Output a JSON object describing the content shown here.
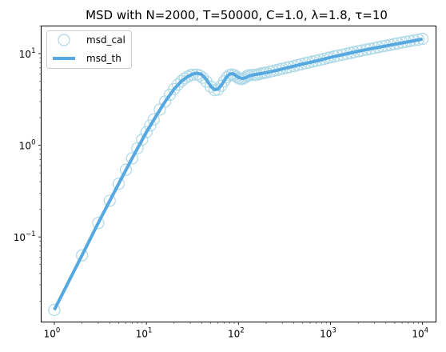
{
  "chart_data": {
    "type": "line",
    "title": "MSD with N=2000, T=50000, C=1.0, λ=1.8, τ=10",
    "xlabel": "",
    "ylabel": "",
    "xscale": "log",
    "yscale": "log",
    "xlim": [
      0.72,
      14000
    ],
    "ylim": [
      0.0118,
      20
    ],
    "grid": false,
    "legend": {
      "placement": "upper-left"
    },
    "x_ticks": [
      {
        "value": 1,
        "base": "10",
        "exp": "0"
      },
      {
        "value": 10,
        "base": "10",
        "exp": "1"
      },
      {
        "value": 100,
        "base": "10",
        "exp": "2"
      },
      {
        "value": 1000,
        "base": "10",
        "exp": "3"
      },
      {
        "value": 10000,
        "base": "10",
        "exp": "4"
      }
    ],
    "y_ticks": [
      {
        "value": 0.1,
        "base": "10",
        "exp": "−1"
      },
      {
        "value": 1,
        "base": "10",
        "exp": "0"
      },
      {
        "value": 10,
        "base": "10",
        "exp": "1"
      }
    ],
    "series": [
      {
        "name": "msd_cal",
        "style": "markers",
        "color": "#add8e6",
        "x": [
          1,
          2,
          3,
          4,
          5,
          6,
          7,
          8,
          9,
          10,
          11,
          12,
          14,
          16,
          18,
          20,
          22,
          24,
          26,
          28,
          30,
          32,
          35,
          38,
          41,
          45,
          50,
          55,
          60,
          65,
          70,
          75,
          80,
          85,
          90,
          95,
          100,
          105,
          110,
          115,
          120,
          125,
          130,
          140,
          150,
          160,
          170,
          180,
          190,
          200,
          220,
          240,
          260,
          280,
          300,
          330,
          360,
          400,
          440,
          480,
          530,
          580,
          640,
          700,
          770,
          850,
          930,
          1000,
          1100,
          1200,
          1350,
          1500,
          1650,
          1800,
          2000,
          2200,
          2450,
          2700,
          3000,
          3300,
          3650,
          4000,
          4450,
          4900,
          5400,
          6000,
          6600,
          7300,
          8100,
          9000,
          10000
        ],
        "y": [
          0.016,
          0.063,
          0.142,
          0.248,
          0.38,
          0.54,
          0.72,
          0.93,
          1.15,
          1.39,
          1.64,
          1.91,
          2.45,
          3.0,
          3.55,
          4.1,
          4.6,
          5.0,
          5.35,
          5.6,
          5.78,
          5.88,
          5.9,
          5.75,
          5.45,
          4.95,
          4.35,
          4.0,
          4.05,
          4.45,
          5.0,
          5.5,
          5.8,
          5.9,
          5.8,
          5.6,
          5.4,
          5.3,
          5.3,
          5.4,
          5.55,
          5.7,
          5.8,
          5.85,
          5.85,
          5.9,
          6.0,
          6.1,
          6.15,
          6.2,
          6.35,
          6.5,
          6.6,
          6.75,
          6.85,
          7.0,
          7.15,
          7.3,
          7.5,
          7.65,
          7.85,
          8.0,
          8.2,
          8.35,
          8.55,
          8.75,
          8.95,
          9.1,
          9.3,
          9.5,
          9.7,
          9.95,
          10.15,
          10.35,
          10.6,
          10.8,
          11.05,
          11.25,
          11.5,
          11.75,
          12.0,
          12.2,
          12.45,
          12.7,
          12.95,
          13.2,
          13.45,
          13.7,
          13.95,
          14.2,
          14.5
        ]
      },
      {
        "name": "msd_th",
        "style": "line",
        "color": "#56a8e0",
        "x": [
          1,
          2,
          3,
          5,
          7,
          10,
          13,
          16,
          20,
          24,
          28,
          32,
          36,
          40,
          45,
          50,
          55,
          60,
          65,
          70,
          75,
          80,
          85,
          90,
          95,
          100,
          110,
          120,
          130,
          150,
          175,
          200,
          250,
          300,
          400,
          500,
          700,
          1000,
          1500,
          2000,
          3000,
          5000,
          7000,
          10000
        ],
        "y": [
          0.016,
          0.063,
          0.142,
          0.38,
          0.72,
          1.39,
          2.15,
          3.0,
          4.1,
          5.0,
          5.6,
          6.0,
          6.1,
          5.9,
          5.2,
          4.4,
          4.05,
          4.1,
          4.5,
          5.05,
          5.6,
          5.95,
          6.05,
          5.95,
          5.7,
          5.5,
          5.35,
          5.45,
          5.7,
          5.9,
          6.05,
          6.2,
          6.5,
          6.8,
          7.3,
          7.7,
          8.3,
          9.1,
          9.95,
          10.6,
          11.5,
          12.65,
          13.45,
          14.4
        ]
      }
    ]
  }
}
